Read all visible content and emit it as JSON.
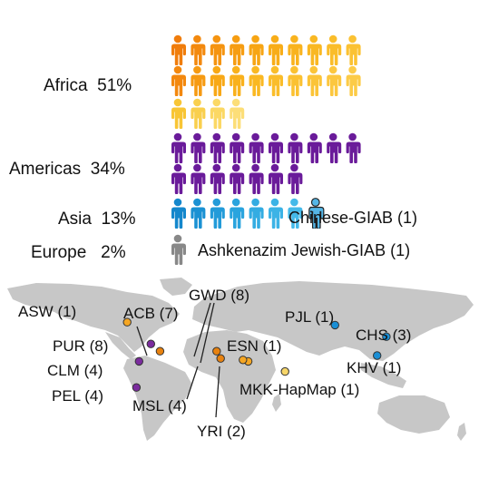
{
  "chart_data": {
    "type": "pictograph",
    "regions": [
      {
        "name": "Africa",
        "percent_label": "51%",
        "rows": [
          {
            "count": 10,
            "colors": [
              "#f07d0c",
              "#f3890e",
              "#f59410",
              "#f69d12",
              "#f7a514",
              "#f8ad18",
              "#f9b31e",
              "#f9b823",
              "#fabd2a",
              "#fbc233"
            ]
          },
          {
            "count": 10,
            "colors": [
              "#f3880e",
              "#f69a12",
              "#f8a816",
              "#f9b11c",
              "#fab822",
              "#fabd2a",
              "#fbc131",
              "#fbc438",
              "#fcc73f",
              "#fccb47"
            ]
          },
          {
            "count": 4,
            "colors": [
              "#f8c535",
              "#f9cf4d",
              "#fbd864",
              "#fcde78"
            ]
          }
        ]
      },
      {
        "name": "Americas",
        "percent_label": "34%",
        "rows": [
          {
            "count": 10,
            "colors": [
              "#6a1b9a"
            ]
          },
          {
            "count": 7,
            "colors": [
              "#6a1b9a"
            ]
          }
        ]
      },
      {
        "name": "Asia",
        "percent_label": "13%",
        "rows": [
          {
            "count": 7,
            "colors": [
              "#1487cc",
              "#1a91d3",
              "#229bd9",
              "#2aa4de",
              "#33ace2",
              "#3cb3e6",
              "#44b9e9"
            ]
          }
        ],
        "annotation": "Chinese-GIAB (1)"
      },
      {
        "name": "Europe",
        "percent_label": "2%",
        "rows": [
          {
            "count": 1,
            "colors": [
              "#888888"
            ]
          }
        ],
        "annotation": "Ashkenazim Jewish-GIAB (1)"
      }
    ],
    "map_points": [
      {
        "label": "ASW (1)",
        "color": "#f5a623",
        "lon": -84,
        "lat": 33
      },
      {
        "label": "ACB (7)",
        "color": "#e8820f",
        "lon": -59,
        "lat": 13
      },
      {
        "label": "PUR (8)",
        "color": "#7b2c9e",
        "lon": -66,
        "lat": 18
      },
      {
        "label": "CLM (4)",
        "color": "#7b2c9e",
        "lon": -75,
        "lat": 6
      },
      {
        "label": "PEL (4)",
        "color": "#7b2c9e",
        "lon": -77,
        "lat": -12
      },
      {
        "label": "GWD (8)",
        "color": "#e8820f",
        "lon": -16,
        "lat": 13
      },
      {
        "label": "MSL (4)",
        "color": "#e8820f",
        "lon": -13,
        "lat": 8
      },
      {
        "label": "ESN (1)",
        "color": "#f5a623",
        "lon": 8,
        "lat": 6
      },
      {
        "label": "YRI (2)",
        "color": "#f5a623",
        "lon": 4,
        "lat": 7
      },
      {
        "label": "MKK-HapMap (1)",
        "color": "#f7d66a",
        "lon": 36,
        "lat": -1
      },
      {
        "label": "PJL (1)",
        "color": "#1a8fd6",
        "lon": 74,
        "lat": 31
      },
      {
        "label": "CHS (3)",
        "color": "#1a8fd6",
        "lon": 113,
        "lat": 23
      },
      {
        "label": "KHV (1)",
        "color": "#1a8fd6",
        "lon": 106,
        "lat": 10
      }
    ]
  }
}
